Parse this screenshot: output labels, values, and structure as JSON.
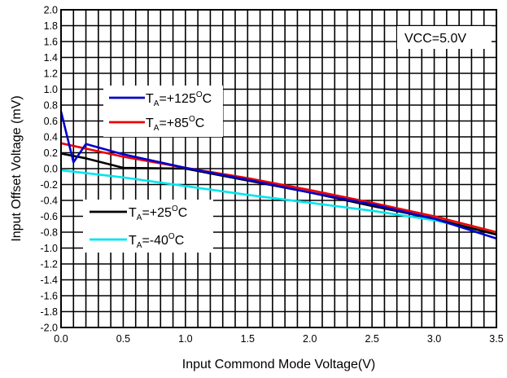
{
  "chart_data": {
    "type": "line",
    "xlabel": "Input Commond Mode Voltage(V)",
    "ylabel": "Input Offset Voltage (mV)",
    "xlim": [
      0.0,
      3.5
    ],
    "ylim": [
      -2.0,
      2.0
    ],
    "xticks": [
      "0.0",
      "0.5",
      "1.0",
      "1.5",
      "2.0",
      "2.5",
      "3.0",
      "3.5"
    ],
    "yticks": [
      "2.0",
      "1.8",
      "1.6",
      "1.4",
      "1.2",
      "1.0",
      "0.8",
      "0.6",
      "0.4",
      "0.2",
      "0.0",
      "-0.2",
      "-0.4",
      "-0.6",
      "-0.8",
      "-1.0",
      "-1.2",
      "-1.4",
      "-1.6",
      "-1.8",
      "-2.0"
    ],
    "grid": true,
    "annotation": "VCC=5.0V",
    "series": [
      {
        "legend_main": "T",
        "legend_sub": "A",
        "legend_rest": "=+125",
        "legend_sup": "O",
        "legend_unit": "C",
        "color": "#0000cc",
        "x": [
          0.0,
          0.1,
          0.2,
          0.5,
          1.0,
          1.5,
          2.0,
          2.5,
          3.0,
          3.5
        ],
        "y": [
          0.72,
          0.08,
          0.31,
          0.18,
          0.01,
          -0.14,
          -0.3,
          -0.45,
          -0.63,
          -0.88
        ]
      },
      {
        "legend_main": "T",
        "legend_sub": "A",
        "legend_rest": "=+85",
        "legend_sup": "O",
        "legend_unit": "C",
        "color": "#ee0000",
        "x": [
          0.0,
          0.5,
          1.0,
          1.5,
          2.0,
          2.5,
          3.0,
          3.5
        ],
        "y": [
          0.32,
          0.15,
          0.01,
          -0.12,
          -0.27,
          -0.43,
          -0.6,
          -0.8
        ]
      },
      {
        "legend_main": "T",
        "legend_sub": "A",
        "legend_rest": "=+25",
        "legend_sup": "O",
        "legend_unit": "C",
        "color": "#000000",
        "x": [
          0.0,
          0.2,
          0.5,
          1.0,
          1.5,
          2.0,
          2.5,
          3.0,
          3.5
        ],
        "y": [
          0.19,
          0.13,
          0.01,
          0.0,
          -0.15,
          -0.3,
          -0.47,
          -0.63,
          -0.83
        ]
      },
      {
        "legend_main": "T",
        "legend_sub": "A",
        "legend_rest": "=-40",
        "legend_sup": "O",
        "legend_unit": "C",
        "color": "#00e5ee",
        "x": [
          0.0,
          0.5,
          1.0,
          1.5,
          2.0,
          2.5,
          3.0,
          3.5
        ],
        "y": [
          -0.02,
          -0.11,
          -0.22,
          -0.33,
          -0.43,
          -0.53,
          -0.65,
          -0.82
        ]
      }
    ]
  }
}
